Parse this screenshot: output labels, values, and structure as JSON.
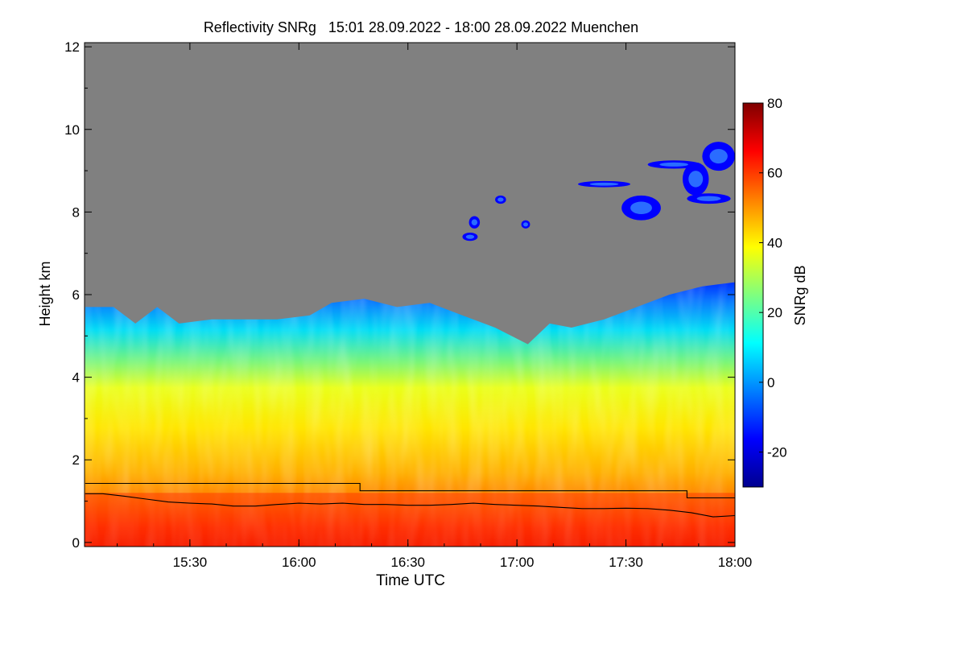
{
  "chart_data": {
    "type": "heatmap",
    "title": "Reflectivity SNRg   15:01 28.09.2022 - 18:00 28.09.2022 Muenchen",
    "xlabel": "Time UTC",
    "ylabel": "Height km",
    "colorbar_label": "SNRg dB",
    "x_range_hours": [
      15.0167,
      18.0
    ],
    "x_ticks": [
      {
        "value": 15.5,
        "label": "15:30"
      },
      {
        "value": 16.0,
        "label": "16:00"
      },
      {
        "value": 16.5,
        "label": "16:30"
      },
      {
        "value": 17.0,
        "label": "17:00"
      },
      {
        "value": 17.5,
        "label": "17:30"
      },
      {
        "value": 18.0,
        "label": "18:00"
      }
    ],
    "ylim": [
      -0.1,
      12.1
    ],
    "y_ticks": [
      {
        "value": 0,
        "label": "0"
      },
      {
        "value": 2,
        "label": "2"
      },
      {
        "value": 4,
        "label": "4"
      },
      {
        "value": 6,
        "label": "6"
      },
      {
        "value": 8,
        "label": "8"
      },
      {
        "value": 10,
        "label": "10"
      },
      {
        "value": 12,
        "label": "12"
      }
    ],
    "colorbar_range": [
      -30,
      80
    ],
    "colorbar_ticks": [
      {
        "value": -20,
        "label": "-20"
      },
      {
        "value": 0,
        "label": "0"
      },
      {
        "value": 20,
        "label": "20"
      },
      {
        "value": 40,
        "label": "40"
      },
      {
        "value": 60,
        "label": "60"
      },
      {
        "value": 80,
        "label": "80"
      }
    ],
    "no_signal_color": "#808080",
    "colormap": [
      "#00008f",
      "#0000ff",
      "#007fff",
      "#00ffff",
      "#7fff7f",
      "#ffff00",
      "#ff7f00",
      "#ff0000",
      "#7f0000"
    ],
    "echo_top_km": [
      [
        15.02,
        5.7
      ],
      [
        15.15,
        5.7
      ],
      [
        15.25,
        5.3
      ],
      [
        15.35,
        5.7
      ],
      [
        15.45,
        5.3
      ],
      [
        15.6,
        5.4
      ],
      [
        15.75,
        5.4
      ],
      [
        15.9,
        5.4
      ],
      [
        16.05,
        5.5
      ],
      [
        16.15,
        5.8
      ],
      [
        16.3,
        5.9
      ],
      [
        16.45,
        5.7
      ],
      [
        16.6,
        5.8
      ],
      [
        16.75,
        5.5
      ],
      [
        16.9,
        5.2
      ],
      [
        17.05,
        4.8
      ],
      [
        17.15,
        5.3
      ],
      [
        17.25,
        5.2
      ],
      [
        17.4,
        5.4
      ],
      [
        17.55,
        5.7
      ],
      [
        17.7,
        6.0
      ],
      [
        17.85,
        6.2
      ],
      [
        18.0,
        6.3
      ]
    ],
    "cloud_patches": [
      {
        "x": [
          16.78,
          16.83
        ],
        "y": [
          7.6,
          7.9
        ]
      },
      {
        "x": [
          16.75,
          16.82
        ],
        "y": [
          7.3,
          7.5
        ]
      },
      {
        "x": [
          16.9,
          16.95
        ],
        "y": [
          8.2,
          8.4
        ]
      },
      {
        "x": [
          17.02,
          17.06
        ],
        "y": [
          7.6,
          7.8
        ]
      },
      {
        "x": [
          17.28,
          17.52
        ],
        "y": [
          8.6,
          8.75
        ]
      },
      {
        "x": [
          17.48,
          17.66
        ],
        "y": [
          7.8,
          8.4
        ]
      },
      {
        "x": [
          17.6,
          17.84
        ],
        "y": [
          9.05,
          9.25
        ]
      },
      {
        "x": [
          17.76,
          17.88
        ],
        "y": [
          8.4,
          9.2
        ]
      },
      {
        "x": [
          17.85,
          18.0
        ],
        "y": [
          9.0,
          9.7
        ]
      },
      {
        "x": [
          17.78,
          17.98
        ],
        "y": [
          8.2,
          8.45
        ]
      }
    ],
    "series": [
      {
        "name": "Upper boundary line",
        "color": "#000000",
        "points": [
          [
            15.02,
            1.43
          ],
          [
            16.28,
            1.43
          ],
          [
            16.28,
            1.25
          ],
          [
            17.78,
            1.25
          ],
          [
            17.78,
            1.08
          ],
          [
            18.0,
            1.08
          ]
        ]
      },
      {
        "name": "Lower boundary line",
        "color": "#000000",
        "points": [
          [
            15.02,
            1.18
          ],
          [
            15.1,
            1.18
          ],
          [
            15.2,
            1.12
          ],
          [
            15.3,
            1.05
          ],
          [
            15.4,
            0.98
          ],
          [
            15.5,
            0.95
          ],
          [
            15.6,
            0.93
          ],
          [
            15.7,
            0.88
          ],
          [
            15.8,
            0.88
          ],
          [
            15.9,
            0.92
          ],
          [
            16.0,
            0.95
          ],
          [
            16.1,
            0.93
          ],
          [
            16.2,
            0.95
          ],
          [
            16.3,
            0.92
          ],
          [
            16.4,
            0.92
          ],
          [
            16.5,
            0.9
          ],
          [
            16.6,
            0.9
          ],
          [
            16.7,
            0.92
          ],
          [
            16.8,
            0.95
          ],
          [
            16.9,
            0.92
          ],
          [
            17.0,
            0.9
          ],
          [
            17.1,
            0.88
          ],
          [
            17.2,
            0.85
          ],
          [
            17.3,
            0.82
          ],
          [
            17.4,
            0.82
          ],
          [
            17.5,
            0.83
          ],
          [
            17.6,
            0.82
          ],
          [
            17.7,
            0.78
          ],
          [
            17.8,
            0.72
          ],
          [
            17.9,
            0.62
          ],
          [
            18.0,
            0.65
          ]
        ]
      }
    ]
  }
}
